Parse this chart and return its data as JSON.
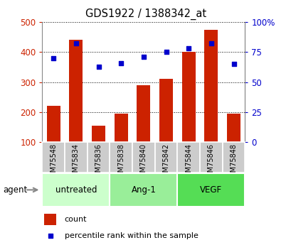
{
  "title": "GDS1922 / 1388342_at",
  "samples": [
    "GSM75548",
    "GSM75834",
    "GSM75836",
    "GSM75838",
    "GSM75840",
    "GSM75842",
    "GSM75844",
    "GSM75846",
    "GSM75848"
  ],
  "counts": [
    220,
    440,
    155,
    195,
    290,
    310,
    400,
    475,
    195
  ],
  "percentiles": [
    70,
    82,
    63,
    66,
    71,
    75,
    78,
    82,
    65
  ],
  "bar_color": "#cc2200",
  "dot_color": "#0000cc",
  "left_ylim": [
    100,
    500
  ],
  "left_yticks": [
    100,
    200,
    300,
    400,
    500
  ],
  "right_ylim": [
    0,
    100
  ],
  "right_yticks": [
    0,
    25,
    50,
    75,
    100
  ],
  "right_yticklabels": [
    "0",
    "25",
    "50",
    "75",
    "100%"
  ],
  "groups": [
    {
      "label": "untreated",
      "start": 0,
      "end": 3,
      "color": "#ccffcc"
    },
    {
      "label": "Ang-1",
      "start": 3,
      "end": 6,
      "color": "#99ee99"
    },
    {
      "label": "VEGF",
      "start": 6,
      "end": 9,
      "color": "#55dd55"
    }
  ],
  "agent_label": "agent",
  "grid_color": "#000000",
  "tick_label_color_left": "#cc2200",
  "tick_label_color_right": "#0000cc",
  "xticklabel_bg": "#cccccc",
  "bar_width": 0.6,
  "figwidth": 4.1,
  "figheight": 3.45,
  "dpi": 100
}
